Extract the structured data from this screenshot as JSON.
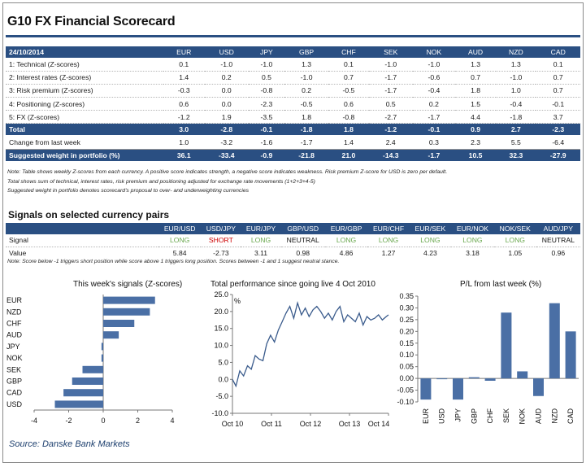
{
  "title": "G10 FX Financial Scorecard",
  "colors": {
    "brand": "#2a4f82",
    "long": "#6aa84f",
    "short": "#cc0000",
    "bar": "#4a6fa5",
    "line": "#3a5b8c"
  },
  "scorecard": {
    "date": "24/10/2014",
    "currencies": [
      "EUR",
      "USD",
      "JPY",
      "GBP",
      "CHF",
      "SEK",
      "NOK",
      "AUD",
      "NZD",
      "CAD"
    ],
    "rows": [
      {
        "label": "1: Technical (Z-scores)",
        "values": [
          "0.1",
          "-1.0",
          "-1.0",
          "1.3",
          "0.1",
          "-1.0",
          "-1.0",
          "1.3",
          "1.3",
          "0.1"
        ]
      },
      {
        "label": "2: Interest rates (Z-scores)",
        "values": [
          "1.4",
          "0.2",
          "0.5",
          "-1.0",
          "0.7",
          "-1.7",
          "-0.6",
          "0.7",
          "-1.0",
          "0.7"
        ]
      },
      {
        "label": "3: Risk premium (Z-scores)",
        "values": [
          "-0.3",
          "0.0",
          "-0.8",
          "0.2",
          "-0.5",
          "-1.7",
          "-0.4",
          "1.8",
          "1.0",
          "0.7"
        ]
      },
      {
        "label": "4: Positioning (Z-scores)",
        "values": [
          "0.6",
          "0.0",
          "-2.3",
          "-0.5",
          "0.6",
          "0.5",
          "0.2",
          "1.5",
          "-0.4",
          "-0.1"
        ]
      },
      {
        "label": "5: FX (Z-scores)",
        "values": [
          "-1.2",
          "1.9",
          "-3.5",
          "1.8",
          "-0.8",
          "-2.7",
          "-1.7",
          "4.4",
          "-1.8",
          "3.7"
        ]
      }
    ],
    "total": {
      "label": "Total",
      "values": [
        "3.0",
        "-2.8",
        "-0.1",
        "-1.8",
        "1.8",
        "-1.2",
        "-0.1",
        "0.9",
        "2.7",
        "-2.3"
      ]
    },
    "change": {
      "label": "Change from last week",
      "values": [
        "1.0",
        "-3.2",
        "-1.6",
        "-1.7",
        "1.4",
        "2.4",
        "0.3",
        "2.3",
        "5.5",
        "-6.4"
      ]
    },
    "weight": {
      "label": "Suggested weight in portfolio (%)",
      "values": [
        "36.1",
        "-33.4",
        "-0.9",
        "-21.8",
        "21.0",
        "-14.3",
        "-1.7",
        "10.5",
        "32.3",
        "-27.9"
      ]
    },
    "notes": [
      "Note: Table shows weekly Z-scores from each currency. A positive score indicates strength, a negative score indicates weakness. Risk premium Z-score for USD is zero per default.",
      "Total shows sum of technical, interest rates, risk premium and positioning adjusted for exchange rate movements (1+2+3+4-5)",
      "Suggested weight in portfolio denotes scorecard's proposal to over- and underweighting currencies"
    ]
  },
  "signals": {
    "title": "Signals on selected currency pairs",
    "pairs": [
      "EUR/USD",
      "USD/JPY",
      "EUR/JPY",
      "GBP/USD",
      "EUR/GBP",
      "EUR/CHF",
      "EUR/SEK",
      "EUR/NOK",
      "NOK/SEK",
      "AUD/JPY"
    ],
    "signal_label": "Signal",
    "value_label": "Value",
    "signals": [
      "LONG",
      "SHORT",
      "LONG",
      "NEUTRAL",
      "LONG",
      "LONG",
      "LONG",
      "LONG",
      "LONG",
      "NEUTRAL"
    ],
    "values": [
      "5.84",
      "-2.73",
      "3.11",
      "0.98",
      "4.86",
      "1.27",
      "4.23",
      "3.18",
      "1.05",
      "0.96"
    ],
    "note": "Note: Score below -1 triggers short position while score above 1 triggers long position. Scores between -1 and 1 suggest neutral stance."
  },
  "chart_data": [
    {
      "type": "bar",
      "orientation": "horizontal",
      "title": "This week's signals (Z-scores)",
      "categories": [
        "EUR",
        "NZD",
        "CHF",
        "AUD",
        "JPY",
        "NOK",
        "SEK",
        "GBP",
        "CAD",
        "USD"
      ],
      "values": [
        3.0,
        2.7,
        1.8,
        0.9,
        -0.1,
        -0.1,
        -1.2,
        -1.8,
        -2.3,
        -2.8
      ],
      "xlim": [
        -4,
        4
      ],
      "xticks": [
        "-4",
        "-2",
        "0",
        "2",
        "4"
      ]
    },
    {
      "type": "line",
      "title": "Total performance since going live 4 Oct 2010",
      "ylabel": "%",
      "ylim": [
        -10,
        25
      ],
      "yticks": [
        "25.0",
        "20.0",
        "15.0",
        "10.0",
        "5.0",
        "0.0",
        "-5.0",
        "-10.0"
      ],
      "xticks": [
        "Oct 10",
        "Oct 11",
        "Oct 12",
        "Oct 13",
        "Oct 14"
      ],
      "x": [
        2010.76,
        2010.85,
        2010.95,
        2011.05,
        2011.15,
        2011.25,
        2011.35,
        2011.45,
        2011.55,
        2011.65,
        2011.75,
        2011.85,
        2011.95,
        2012.05,
        2012.15,
        2012.25,
        2012.35,
        2012.45,
        2012.55,
        2012.65,
        2012.75,
        2012.85,
        2012.95,
        2013.05,
        2013.15,
        2013.25,
        2013.35,
        2013.45,
        2013.55,
        2013.65,
        2013.75,
        2013.85,
        2013.95,
        2014.05,
        2014.15,
        2014.25,
        2014.35,
        2014.45,
        2014.55,
        2014.65,
        2014.75,
        2014.81
      ],
      "y": [
        0.0,
        -2.0,
        2.5,
        1.0,
        4.0,
        3.0,
        7.0,
        6.0,
        5.5,
        10.5,
        13.0,
        11.0,
        14.5,
        17.0,
        19.5,
        21.5,
        18.0,
        22.5,
        19.0,
        21.0,
        18.5,
        20.5,
        21.5,
        20.0,
        18.0,
        19.5,
        17.5,
        20.0,
        21.5,
        17.0,
        19.0,
        18.0,
        17.0,
        19.5,
        16.0,
        18.5,
        17.5,
        18.0,
        19.0,
        17.5,
        18.5,
        19.0
      ]
    },
    {
      "type": "bar",
      "title": "P/L from last week (%)",
      "categories": [
        "EUR",
        "USD",
        "JPY",
        "GBP",
        "CHF",
        "SEK",
        "NOK",
        "AUD",
        "NZD",
        "CAD"
      ],
      "values": [
        -0.09,
        0.0,
        -0.09,
        0.005,
        -0.01,
        0.28,
        0.03,
        -0.075,
        0.32,
        0.2
      ],
      "ylim": [
        -0.1,
        0.35
      ],
      "yticks": [
        "0.35",
        "0.30",
        "0.25",
        "0.20",
        "0.15",
        "0.10",
        "0.05",
        "0.00",
        "-0.05",
        "-0.10"
      ]
    }
  ],
  "source": "Source: Danske Bank Markets"
}
